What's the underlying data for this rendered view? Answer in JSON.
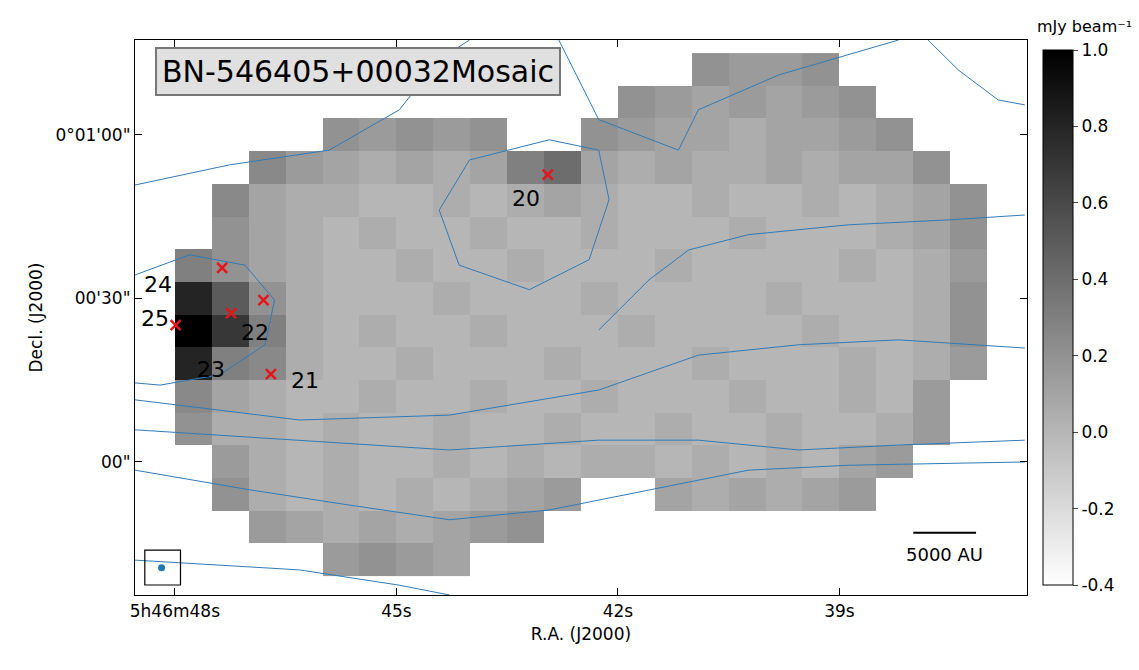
{
  "chart_data": {
    "type": "heatmap",
    "title": "BN-546405+00032Mosaic",
    "xlabel": "R.A. (J2000)",
    "ylabel": "Decl. (J2000)",
    "xlim": [
      48.54,
      36.46
    ],
    "ylim": [
      -24.4,
      77.4
    ],
    "xticks": [
      {
        "value": 48,
        "label": "5h46m48s"
      },
      {
        "value": 45,
        "label": "45s"
      },
      {
        "value": 42,
        "label": "42s"
      },
      {
        "value": 39,
        "label": "39s"
      }
    ],
    "yticks": [
      {
        "value": 60,
        "label": "0°01'00\""
      },
      {
        "value": 30,
        "label": "00'30\""
      },
      {
        "value": 0,
        "label": "00\""
      }
    ],
    "image": {
      "color": "Greys",
      "x": [
        48.25,
        47.75,
        47.25,
        46.75,
        46.25,
        45.75,
        45.25,
        44.75,
        44.25,
        43.75,
        43.25,
        42.75,
        42.25,
        41.75,
        41.25,
        40.75,
        40.25,
        39.75,
        39.25,
        38.75,
        38.25,
        37.75,
        37.25,
        36.75
      ],
      "y": [
        -18,
        -12,
        -6,
        0,
        6,
        12,
        18,
        24,
        30,
        36,
        42,
        48,
        54,
        60,
        66,
        72
      ],
      "z": [
        [
          null,
          null,
          null,
          null,
          null,
          0.15,
          0.2,
          0.15,
          0.1,
          null,
          null,
          null,
          null,
          null,
          null,
          null,
          null,
          null,
          null,
          null,
          null,
          null,
          null,
          null
        ],
        [
          null,
          null,
          null,
          0.15,
          0.1,
          0.05,
          0.1,
          0.05,
          0.1,
          0.15,
          0.2,
          null,
          null,
          null,
          null,
          null,
          null,
          null,
          null,
          null,
          null,
          null,
          null,
          null
        ],
        [
          null,
          null,
          0.2,
          0.05,
          0.0,
          0.05,
          0.0,
          0.05,
          0.0,
          0.05,
          0.1,
          0.15,
          null,
          null,
          0.1,
          0.05,
          0.1,
          0.05,
          0.1,
          0.15,
          null,
          null,
          null,
          null
        ],
        [
          null,
          null,
          0.15,
          0.05,
          0.0,
          0.05,
          0.0,
          0.0,
          0.05,
          0.0,
          0.05,
          0.0,
          0.05,
          0.05,
          0.0,
          0.05,
          0.0,
          0.05,
          0.0,
          0.1,
          0.15,
          null,
          null,
          null
        ],
        [
          null,
          0.2,
          0.05,
          0.05,
          0.0,
          0.05,
          0.0,
          0.0,
          0.05,
          0.0,
          0.0,
          0.05,
          0.0,
          0.0,
          0.05,
          0.0,
          0.0,
          0.05,
          0.0,
          0.0,
          0.05,
          0.15,
          null,
          null
        ],
        [
          null,
          0.25,
          0.1,
          0.05,
          0.0,
          0.0,
          0.05,
          0.0,
          0.0,
          0.05,
          0.0,
          0.0,
          0.05,
          0.0,
          0.0,
          0.0,
          0.05,
          0.0,
          0.0,
          0.05,
          0.0,
          0.15,
          null,
          null
        ],
        [
          null,
          0.8,
          0.3,
          0.25,
          0.05,
          0.0,
          0.0,
          0.05,
          0.0,
          0.0,
          0.0,
          0.05,
          0.0,
          0.0,
          0.0,
          0.05,
          0.0,
          0.0,
          0.0,
          0.05,
          0.0,
          0.05,
          0.15,
          null
        ],
        [
          null,
          1.0,
          0.7,
          0.3,
          0.05,
          0.0,
          0.05,
          0.0,
          0.0,
          0.05,
          0.0,
          0.0,
          0.0,
          0.05,
          0.0,
          0.0,
          0.0,
          0.0,
          0.05,
          0.0,
          0.0,
          0.05,
          0.2,
          null
        ],
        [
          null,
          0.8,
          0.5,
          0.2,
          0.05,
          0.0,
          0.0,
          0.0,
          0.05,
          0.0,
          0.0,
          0.0,
          0.05,
          0.0,
          0.0,
          0.0,
          0.0,
          0.05,
          0.0,
          0.0,
          0.0,
          0.05,
          0.2,
          null
        ],
        [
          null,
          0.3,
          0.2,
          0.1,
          0.05,
          0.0,
          0.0,
          0.05,
          0.0,
          0.0,
          0.05,
          0.0,
          0.0,
          0.0,
          0.05,
          0.0,
          0.0,
          0.0,
          0.0,
          0.05,
          0.0,
          0.05,
          0.15,
          null
        ],
        [
          null,
          null,
          0.2,
          0.1,
          0.05,
          0.0,
          0.05,
          0.0,
          0.0,
          0.05,
          0.0,
          0.0,
          0.05,
          0.0,
          0.0,
          0.0,
          0.05,
          0.0,
          0.0,
          0.0,
          0.05,
          0.1,
          0.2,
          null
        ],
        [
          null,
          null,
          0.25,
          0.1,
          0.05,
          0.05,
          0.0,
          0.0,
          0.05,
          0.0,
          0.05,
          0.1,
          0.05,
          0.0,
          0.0,
          0.05,
          0.0,
          0.0,
          0.05,
          0.0,
          0.05,
          0.1,
          0.2,
          null
        ],
        [
          null,
          null,
          null,
          0.25,
          0.15,
          0.1,
          0.05,
          0.1,
          0.05,
          0.1,
          0.3,
          0.4,
          0.1,
          0.05,
          0.1,
          0.05,
          0.05,
          0.1,
          0.05,
          0.1,
          0.1,
          0.2,
          null,
          null
        ],
        [
          null,
          null,
          null,
          null,
          null,
          0.2,
          0.15,
          0.2,
          0.15,
          0.2,
          null,
          null,
          0.2,
          0.15,
          0.1,
          0.1,
          0.05,
          0.1,
          0.1,
          0.15,
          0.2,
          null,
          null,
          null
        ],
        [
          null,
          null,
          null,
          null,
          null,
          null,
          null,
          null,
          null,
          null,
          null,
          null,
          null,
          0.2,
          0.15,
          0.1,
          0.15,
          0.1,
          0.15,
          0.2,
          null,
          null,
          null,
          null
        ],
        [
          null,
          null,
          null,
          null,
          null,
          null,
          null,
          null,
          null,
          null,
          null,
          null,
          null,
          null,
          null,
          0.2,
          0.15,
          0.15,
          0.2,
          null,
          null,
          null,
          null,
          null
        ]
      ],
      "colorbar": {
        "title": "mJy beam⁻¹",
        "range": [
          -0.4,
          1.0
        ],
        "ticks": [
          {
            "value": -0.4,
            "label": "-0.4"
          },
          {
            "value": -0.2,
            "label": "-0.2"
          },
          {
            "value": 0.0,
            "label": "0.0"
          },
          {
            "value": 0.2,
            "label": "0.2"
          },
          {
            "value": 0.4,
            "label": "0.4"
          },
          {
            "value": 0.6,
            "label": "0.6"
          },
          {
            "value": 0.8,
            "label": "0.8"
          },
          {
            "value": 1.0,
            "label": "1.0"
          }
        ]
      }
    },
    "contours": {
      "color": "#2f7bb8",
      "lines": [
        {
          "x": [
            48.54,
            47.26,
            45.91,
            44.96,
            44.42,
            44.01
          ],
          "y": [
            50.8,
            54.5,
            57.2,
            64.6,
            73.8,
            77.4
          ]
        },
        {
          "x": [
            48.54,
            47.8,
            47.05,
            46.65,
            46.78,
            47.39,
            48.2,
            48.54
          ],
          "y": [
            34.3,
            38.0,
            36.1,
            29.7,
            21.5,
            16.0,
            14.1,
            14.5
          ]
        },
        {
          "x": [
            48.54,
            46.31,
            44.28,
            42.26,
            40.91,
            39.55,
            38.2,
            36.49
          ],
          "y": [
            11.4,
            7.7,
            8.6,
            13.2,
            19.6,
            21.5,
            22.4,
            20.9
          ]
        },
        {
          "x": [
            48.54,
            46.31,
            44.28,
            42.26,
            40.91,
            39.55,
            38.2,
            36.49
          ],
          "y": [
            5.9,
            4.0,
            2.2,
            4.0,
            4.0,
            2.2,
            3.1,
            4.0
          ]
        },
        {
          "x": [
            48.54,
            46.99,
            45.64,
            44.28,
            42.93,
            41.58,
            40.23,
            38.88,
            36.49
          ],
          "y": [
            -1.5,
            -5.1,
            -7.9,
            -10.6,
            -8.8,
            -5.1,
            -1.5,
            -0.6,
            0.0
          ]
        },
        {
          "x": [
            48.54,
            46.31,
            44.96,
            44.28
          ],
          "y": [
            -18.0,
            -19.8,
            -22.6,
            -24.4
          ]
        },
        {
          "x": [
            44.42,
            44.01,
            42.93,
            42.26,
            42.12,
            42.39,
            43.2,
            44.15,
            44.42
          ],
          "y": [
            46.2,
            55.4,
            59.1,
            57.2,
            48.1,
            37.1,
            31.6,
            36.1,
            46.2
          ]
        },
        {
          "x": [
            42.26,
            41.58,
            41.04,
            40.23,
            38.88,
            37.53,
            36.49
          ],
          "y": [
            24.2,
            33.4,
            38.9,
            41.7,
            43.5,
            44.4,
            45.3
          ]
        },
        {
          "x": [
            42.8,
            42.26,
            41.18,
            40.91,
            39.82,
            38.88,
            38.2
          ],
          "y": [
            77.4,
            62.8,
            57.2,
            64.6,
            71.0,
            74.7,
            77.4
          ]
        },
        {
          "x": [
            37.8,
            37.39,
            36.85,
            36.49
          ],
          "y": [
            77.4,
            71.9,
            66.4,
            65.5
          ]
        }
      ]
    },
    "sources": {
      "color": "#e8141c",
      "marker": "x",
      "x": [
        42.95,
        46.7,
        47.24,
        47.99,
        47.36,
        46.8
      ],
      "y": [
        52.7,
        16.1,
        27.3,
        25.1,
        35.6,
        29.7
      ]
    },
    "annotations": [
      {
        "text": "20",
        "x": 43.24,
        "y": 48.4
      },
      {
        "text": "21",
        "x": 46.24,
        "y": 15.0
      },
      {
        "text": "22",
        "x": 46.91,
        "y": 23.7
      },
      {
        "text": "23",
        "x": 47.51,
        "y": 16.9
      },
      {
        "text": "24",
        "x": 48.23,
        "y": 32.5
      },
      {
        "text": "25",
        "x": 48.27,
        "y": 26.4
      }
    ],
    "scale_bar": {
      "label": "5000 AU",
      "x": [
        38.0,
        37.15
      ],
      "y": -13.0
    },
    "beam": {
      "x": 48.18,
      "y": -19.4,
      "color": "#1f77b4"
    }
  }
}
